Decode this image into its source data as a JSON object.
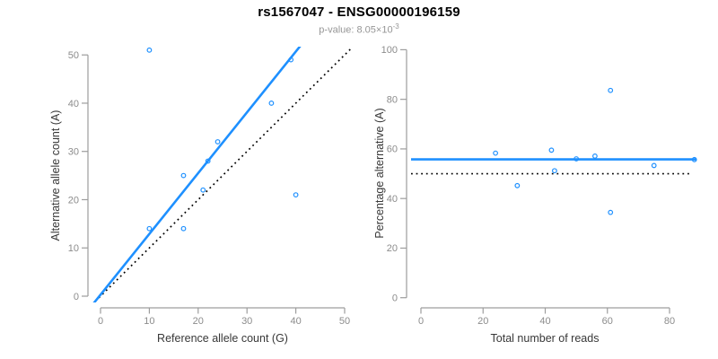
{
  "header": {
    "title": "rs1567047 - ENSG00000196159",
    "subtitle_prefix": "p-value: 8.05×10",
    "subtitle_exponent": "-3"
  },
  "colors": {
    "accent_blue": "#1E90FF",
    "axis_line_gray": "#9d9d9d",
    "tick_label_gray": "#8c8c8c",
    "axis_title_color": "#383838",
    "reference_line_black": "#000000",
    "background": "#ffffff"
  },
  "chart_data": [
    {
      "type": "scatter",
      "name": "allele-counts-plot",
      "xlabel": "Reference allele count (G)",
      "ylabel": "Alternative allele count (A)",
      "xlim": [
        0,
        50
      ],
      "ylim": [
        0,
        50
      ],
      "xticks": [
        0,
        10,
        20,
        30,
        40,
        50
      ],
      "yticks": [
        0,
        10,
        20,
        30,
        40,
        50
      ],
      "grid": false,
      "points": [
        [
          10,
          51
        ],
        [
          39,
          49
        ],
        [
          35,
          40
        ],
        [
          24,
          32
        ],
        [
          22,
          28
        ],
        [
          17,
          25
        ],
        [
          21,
          22
        ],
        [
          40,
          21
        ],
        [
          10,
          14
        ],
        [
          17,
          14
        ]
      ],
      "fit_line": {
        "kind": "linear",
        "slope": 1.26,
        "intercept": 0.3,
        "color": "#1E90FF"
      },
      "reference_line": {
        "kind": "linear",
        "slope": 1,
        "intercept": 0,
        "style": "dotted",
        "color": "#000000"
      }
    },
    {
      "type": "scatter",
      "name": "percentage-vs-reads-plot",
      "xlabel": "Total number of reads",
      "ylabel": "Percentage alternative (A)",
      "xlim": [
        0,
        80
      ],
      "ylim": [
        0,
        100
      ],
      "xticks": [
        0,
        20,
        40,
        60,
        80
      ],
      "yticks": [
        0,
        20,
        40,
        60,
        80,
        100
      ],
      "grid": false,
      "points": [
        [
          24,
          58.3
        ],
        [
          31,
          45.2
        ],
        [
          42,
          59.5
        ],
        [
          43,
          51.2
        ],
        [
          50,
          56.0
        ],
        [
          56,
          57.1
        ],
        [
          61,
          83.6
        ],
        [
          61,
          34.4
        ],
        [
          75,
          53.3
        ],
        [
          88,
          55.7
        ]
      ],
      "fit_line": {
        "kind": "horizontal",
        "y": 55.8,
        "color": "#1E90FF"
      },
      "reference_line": {
        "kind": "horizontal",
        "y": 50,
        "style": "dotted",
        "color": "#000000"
      }
    }
  ]
}
